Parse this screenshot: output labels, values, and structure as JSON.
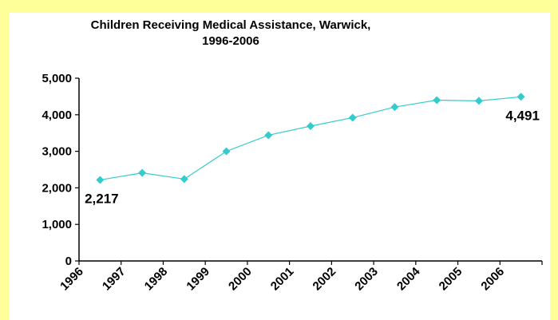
{
  "chart_data": {
    "type": "line",
    "title": "Children Receiving Medical Assistance, Warwick, 1996-2006",
    "title_lines": [
      "Children Receiving Medical Assistance, Warwick,",
      "1996-2006"
    ],
    "xlabel": "",
    "ylabel": "",
    "categories": [
      "1996",
      "1997",
      "1998",
      "1999",
      "2000",
      "2001",
      "2002",
      "2003",
      "2004",
      "2005",
      "2006"
    ],
    "series": [
      {
        "values": [
          2217,
          2410,
          2240,
          3000,
          3440,
          3690,
          3920,
          4210,
          4400,
          4380,
          4491
        ],
        "color": "#33cccc"
      }
    ],
    "ylim": [
      0,
      5000
    ],
    "yticks": [
      "0",
      "1,000",
      "2,000",
      "3,000",
      "4,000",
      "5,000"
    ],
    "ytick_values": [
      0,
      1000,
      2000,
      3000,
      4000,
      5000
    ],
    "data_labels": [
      {
        "index": 0,
        "text": "2,217"
      },
      {
        "index": 10,
        "text": "4,491"
      }
    ],
    "grid": false,
    "legend": "none"
  },
  "colors": {
    "background": "#ffff99",
    "panel": "#ffffff",
    "series": "#33cccc",
    "axis": "#000000"
  }
}
